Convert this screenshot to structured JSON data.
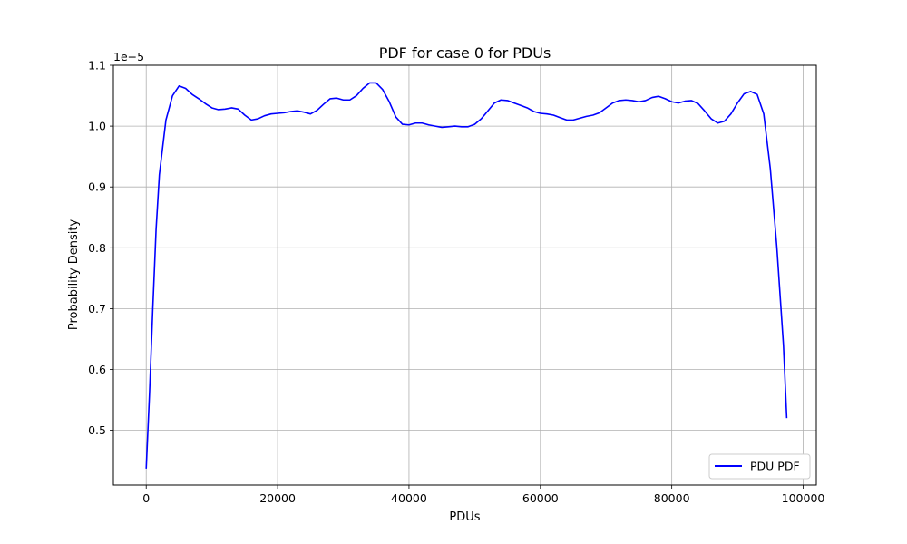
{
  "chart_data": {
    "type": "line",
    "title": "PDF for case 0 for PDUs",
    "xlabel": "PDUs",
    "ylabel": "Probability Density",
    "y_offset_label": "1e−5",
    "xlim": [
      -5000,
      102000
    ],
    "ylim": [
      0.41,
      1.1
    ],
    "x_ticks": [
      0,
      20000,
      40000,
      60000,
      80000,
      100000
    ],
    "x_tick_labels": [
      "0",
      "20000",
      "40000",
      "60000",
      "80000",
      "100000"
    ],
    "y_ticks": [
      0.5,
      0.6,
      0.7,
      0.8,
      0.9,
      1.0,
      1.1
    ],
    "y_tick_labels": [
      "0.5",
      "0.6",
      "0.7",
      "0.8",
      "0.9",
      "1.0",
      "1.1"
    ],
    "grid": true,
    "legend_position": "lower-right",
    "series": [
      {
        "name": "PDU PDF",
        "color": "#0000ff",
        "x": [
          0,
          500,
          1000,
          1500,
          2000,
          3000,
          4000,
          5000,
          6000,
          7000,
          8000,
          9000,
          10000,
          11000,
          12000,
          13000,
          14000,
          15000,
          16000,
          17000,
          18000,
          19000,
          20000,
          21000,
          22000,
          23000,
          24000,
          25000,
          26000,
          27000,
          28000,
          29000,
          30000,
          31000,
          32000,
          33000,
          34000,
          35000,
          36000,
          37000,
          38000,
          39000,
          40000,
          41000,
          42000,
          43000,
          44000,
          45000,
          46000,
          47000,
          48000,
          49000,
          50000,
          51000,
          52000,
          53000,
          54000,
          55000,
          56000,
          57000,
          58000,
          59000,
          60000,
          61000,
          62000,
          63000,
          64000,
          65000,
          66000,
          67000,
          68000,
          69000,
          70000,
          71000,
          72000,
          73000,
          74000,
          75000,
          76000,
          77000,
          78000,
          79000,
          80000,
          81000,
          82000,
          83000,
          84000,
          85000,
          86000,
          87000,
          88000,
          89000,
          90000,
          91000,
          92000,
          93000,
          94000,
          95000,
          96000,
          97000,
          97500
        ],
        "values": [
          0.437,
          0.56,
          0.7,
          0.83,
          0.92,
          1.01,
          1.05,
          1.066,
          1.062,
          1.052,
          1.045,
          1.037,
          1.03,
          1.027,
          1.028,
          1.03,
          1.028,
          1.018,
          1.01,
          1.012,
          1.017,
          1.02,
          1.021,
          1.022,
          1.024,
          1.025,
          1.023,
          1.02,
          1.026,
          1.036,
          1.045,
          1.046,
          1.043,
          1.043,
          1.05,
          1.062,
          1.071,
          1.071,
          1.06,
          1.04,
          1.015,
          1.003,
          1.002,
          1.005,
          1.005,
          1.002,
          1.0,
          0.998,
          0.999,
          1.0,
          0.999,
          0.999,
          1.003,
          1.012,
          1.025,
          1.038,
          1.043,
          1.042,
          1.038,
          1.034,
          1.03,
          1.024,
          1.021,
          1.02,
          1.018,
          1.014,
          1.01,
          1.01,
          1.013,
          1.016,
          1.018,
          1.022,
          1.03,
          1.038,
          1.042,
          1.043,
          1.042,
          1.04,
          1.042,
          1.047,
          1.049,
          1.045,
          1.04,
          1.038,
          1.041,
          1.042,
          1.037,
          1.025,
          1.012,
          1.005,
          1.008,
          1.02,
          1.038,
          1.053,
          1.057,
          1.052,
          1.02,
          0.93,
          0.8,
          0.64,
          0.52
        ]
      }
    ]
  }
}
